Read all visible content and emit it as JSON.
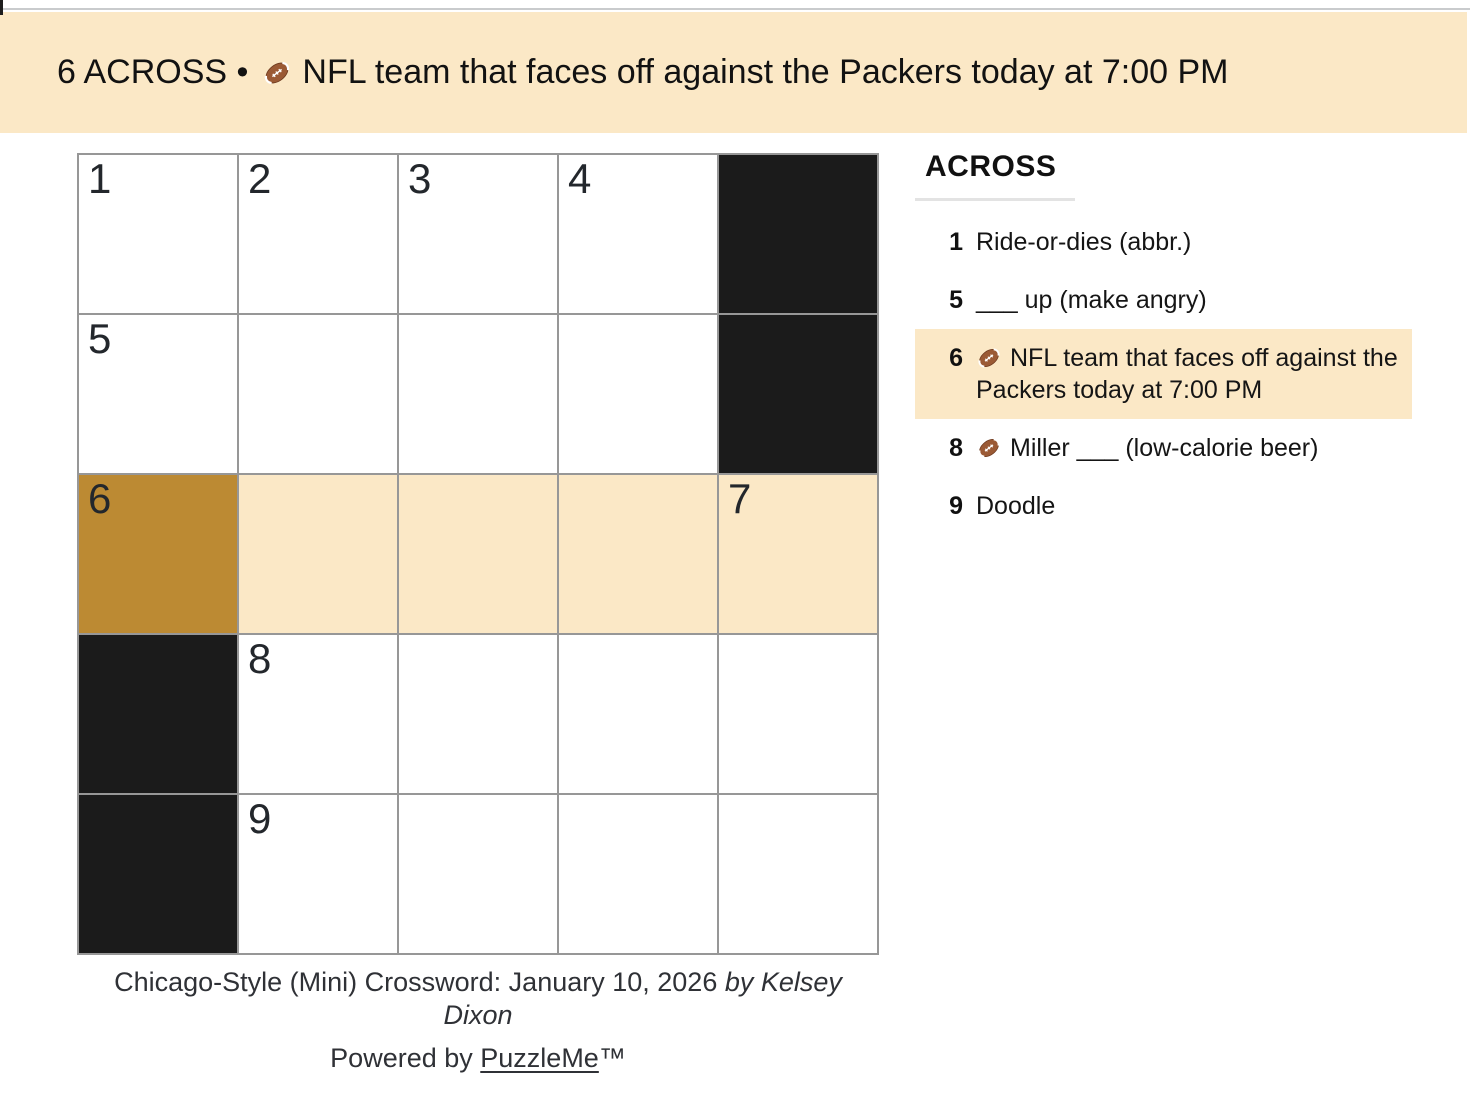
{
  "banner": {
    "prefix": "6 ACROSS •",
    "clue_text": "NFL team that faces off against the Packers today at 7:00 PM"
  },
  "icons": {
    "football": "🏈"
  },
  "colors": {
    "highlight": "#fbe8c6",
    "selected_cell": "#bc8a33",
    "black_cell": "#1b1b1b",
    "grid_line": "#979797"
  },
  "grid": {
    "rows": 5,
    "cols": 5,
    "cells": [
      {
        "type": "white",
        "number": "1"
      },
      {
        "type": "white",
        "number": "2"
      },
      {
        "type": "white",
        "number": "3"
      },
      {
        "type": "white",
        "number": "4"
      },
      {
        "type": "black",
        "number": ""
      },
      {
        "type": "white",
        "number": "5"
      },
      {
        "type": "white",
        "number": ""
      },
      {
        "type": "white",
        "number": ""
      },
      {
        "type": "white",
        "number": ""
      },
      {
        "type": "black",
        "number": ""
      },
      {
        "type": "selected",
        "number": "6"
      },
      {
        "type": "highlight",
        "number": ""
      },
      {
        "type": "highlight",
        "number": ""
      },
      {
        "type": "highlight",
        "number": ""
      },
      {
        "type": "highlight",
        "number": "7"
      },
      {
        "type": "black",
        "number": ""
      },
      {
        "type": "white",
        "number": "8"
      },
      {
        "type": "white",
        "number": ""
      },
      {
        "type": "white",
        "number": ""
      },
      {
        "type": "white",
        "number": ""
      },
      {
        "type": "black",
        "number": ""
      },
      {
        "type": "white",
        "number": "9"
      },
      {
        "type": "white",
        "number": ""
      },
      {
        "type": "white",
        "number": ""
      },
      {
        "type": "white",
        "number": ""
      }
    ]
  },
  "clue_panel": {
    "header": "ACROSS",
    "clues": [
      {
        "number": "1",
        "text": "Ride-or-dies (abbr.)",
        "football": false,
        "highlighted": false
      },
      {
        "number": "5",
        "text": "___ up (make angry)",
        "football": false,
        "highlighted": false
      },
      {
        "number": "6",
        "text": "NFL team that faces off against the Packers today at 7:00 PM",
        "football": true,
        "highlighted": true
      },
      {
        "number": "8",
        "text": "Miller ___ (low-calorie beer)",
        "football": true,
        "highlighted": false
      },
      {
        "number": "9",
        "text": "Doodle",
        "football": false,
        "highlighted": false
      }
    ]
  },
  "footer": {
    "title": "Chicago-Style (Mini) Crossword: January 10, 2026",
    "byline": "by Kelsey Dixon",
    "powered_prefix": "Powered by",
    "powered_link": "PuzzleMe",
    "trademark": "™"
  }
}
